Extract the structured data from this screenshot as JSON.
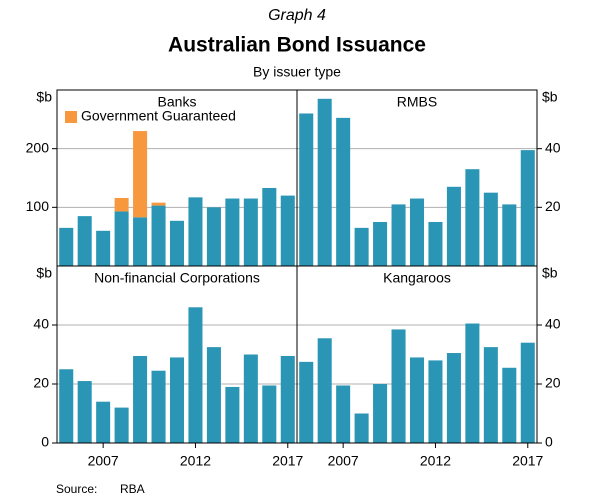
{
  "title": "Graph 4",
  "heading": "Australian Bond Issuance",
  "subtitle": "By issuer type",
  "source_label": "Source:",
  "source": "RBA",
  "chart_data": [
    {
      "type": "bar",
      "title": "Banks",
      "y_unit": "$b",
      "axis_side": "left",
      "legend": "upper left",
      "x": [
        2005,
        2006,
        2007,
        2008,
        2009,
        2010,
        2011,
        2012,
        2013,
        2014,
        2015,
        2016,
        2017
      ],
      "xlim": [
        2004.5,
        2017.5
      ],
      "series": [
        {
          "color": "#2b95b5",
          "values": [
            65,
            85,
            60,
            93,
            83,
            103,
            77,
            117,
            100,
            115,
            115,
            133,
            120
          ]
        },
        {
          "name": "Government Guaranteed",
          "color": "#f7983e",
          "values": [
            0,
            0,
            0,
            23,
            147,
            5,
            0,
            0,
            0,
            0,
            0,
            0,
            0
          ]
        }
      ],
      "ylim": [
        0,
        300
      ],
      "yticks": [
        100,
        200
      ],
      "grid": true
    },
    {
      "type": "bar",
      "title": "RMBS",
      "y_unit": "$b",
      "axis_side": "right",
      "x": [
        2005,
        2006,
        2007,
        2008,
        2009,
        2010,
        2011,
        2012,
        2013,
        2014,
        2015,
        2016,
        2017
      ],
      "xlim": [
        2004.5,
        2017.5
      ],
      "series": [
        {
          "color": "#2b95b5",
          "values": [
            52,
            57,
            50.5,
            13,
            15,
            21,
            23,
            15,
            27,
            33,
            25,
            21,
            39.5
          ]
        }
      ],
      "ylim": [
        0,
        60
      ],
      "yticks": [
        20,
        40
      ],
      "grid": true
    },
    {
      "type": "bar",
      "title": "Non-financial Corporations",
      "y_unit": "$b",
      "axis_side": "left",
      "x": [
        2005,
        2006,
        2007,
        2008,
        2009,
        2010,
        2011,
        2012,
        2013,
        2014,
        2015,
        2016,
        2017
      ],
      "xlim": [
        2004.5,
        2017.5
      ],
      "xticks": [
        2007,
        2012,
        2017
      ],
      "series": [
        {
          "color": "#2b95b5",
          "values": [
            25,
            21,
            14,
            12,
            29.5,
            24.5,
            29,
            46,
            32.5,
            19,
            30,
            19.5,
            29.5
          ]
        }
      ],
      "ylim": [
        0,
        60
      ],
      "yticks": [
        0,
        20,
        40
      ],
      "grid": true
    },
    {
      "type": "bar",
      "title": "Kangaroos",
      "y_unit": "$b",
      "axis_side": "right",
      "x": [
        2005,
        2006,
        2007,
        2008,
        2009,
        2010,
        2011,
        2012,
        2013,
        2014,
        2015,
        2016,
        2017
      ],
      "xlim": [
        2004.5,
        2017.5
      ],
      "xticks": [
        2007,
        2012,
        2017
      ],
      "series": [
        {
          "color": "#2b95b5",
          "values": [
            27.5,
            35.5,
            19.5,
            10,
            20,
            38.5,
            29,
            28,
            30.5,
            40.5,
            32.5,
            25.5,
            34
          ]
        }
      ],
      "ylim": [
        0,
        60
      ],
      "yticks": [
        0,
        20,
        40
      ],
      "grid": true
    }
  ]
}
